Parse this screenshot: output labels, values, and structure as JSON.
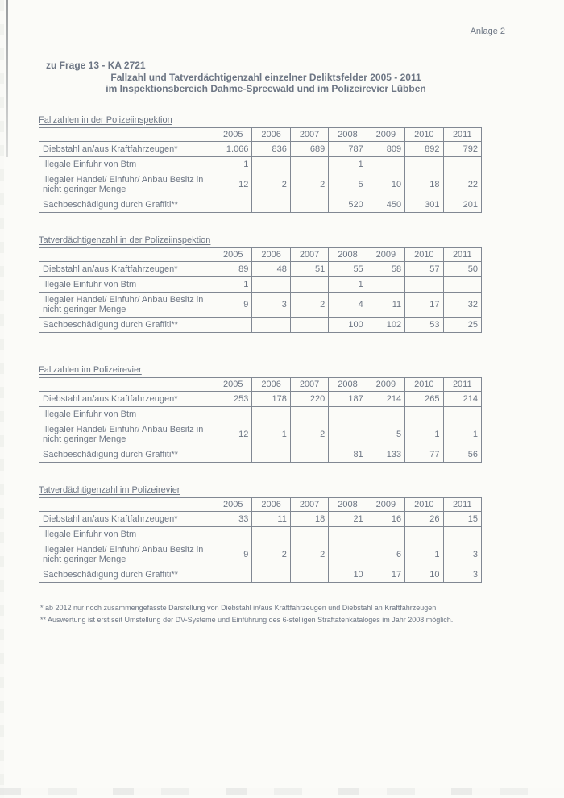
{
  "page": {
    "annotation": "Anlage 2",
    "reference": "zu Frage 13 - KA 2721",
    "title_line1": "Fallzahl und Tatverdächtigenzahl einzelner Deliktsfelder 2005 - 2011",
    "title_line2": "im Inspektionsbereich Dahme-Spreewald und im Polizeirevier Lübben"
  },
  "years": [
    "2005",
    "2006",
    "2007",
    "2008",
    "2009",
    "2010",
    "2011"
  ],
  "tables": [
    {
      "caption": "Fallzahlen in der Polizeiinspektion",
      "rows": [
        {
          "label": "Diebstahl an/aus Kraftfahrzeugen*",
          "values": [
            "1.066",
            "836",
            "689",
            "787",
            "809",
            "892",
            "792"
          ]
        },
        {
          "label": "Illegale Einfuhr von Btm",
          "values": [
            "1",
            "",
            "",
            "1",
            "",
            "",
            ""
          ]
        },
        {
          "label": "Illegaler Handel/ Einfuhr/ Anbau Besitz in nicht geringer Menge",
          "values": [
            "12",
            "2",
            "2",
            "5",
            "10",
            "18",
            "22"
          ]
        },
        {
          "label": "Sachbeschädigung durch Graffiti**",
          "values": [
            "",
            "",
            "",
            "520",
            "450",
            "301",
            "201"
          ]
        }
      ]
    },
    {
      "caption": "Tatverdächtigenzahl in der Polizeiinspektion",
      "rows": [
        {
          "label": "Diebstahl an/aus Kraftfahrzeugen*",
          "values": [
            "89",
            "48",
            "51",
            "55",
            "58",
            "57",
            "50"
          ]
        },
        {
          "label": "Illegale Einfuhr von Btm",
          "values": [
            "1",
            "",
            "",
            "1",
            "",
            "",
            ""
          ]
        },
        {
          "label": "Illegaler Handel/ Einfuhr/ Anbau Besitz in nicht geringer Menge",
          "values": [
            "9",
            "3",
            "2",
            "4",
            "11",
            "17",
            "32"
          ]
        },
        {
          "label": "Sachbeschädigung durch Graffiti**",
          "values": [
            "",
            "",
            "",
            "100",
            "102",
            "53",
            "25"
          ]
        }
      ]
    },
    {
      "caption": "Fallzahlen im Polizeirevier",
      "rows": [
        {
          "label": "Diebstahl an/aus Kraftfahrzeugen*",
          "values": [
            "253",
            "178",
            "220",
            "187",
            "214",
            "265",
            "214"
          ]
        },
        {
          "label": "Illegale Einfuhr von Btm",
          "values": [
            "",
            "",
            "",
            "",
            "",
            "",
            ""
          ]
        },
        {
          "label": "Illegaler Handel/ Einfuhr/ Anbau Besitz in nicht geringer Menge",
          "values": [
            "12",
            "1",
            "2",
            "",
            "5",
            "1",
            "1"
          ]
        },
        {
          "label": "Sachbeschädigung durch Graffiti**",
          "values": [
            "",
            "",
            "",
            "81",
            "133",
            "77",
            "56"
          ]
        }
      ]
    },
    {
      "caption": "Tatverdächtigenzahl im Polizeirevier",
      "rows": [
        {
          "label": "Diebstahl an/aus Kraftfahrzeugen*",
          "values": [
            "33",
            "11",
            "18",
            "21",
            "16",
            "26",
            "15"
          ]
        },
        {
          "label": "Illegale Einfuhr von Btm",
          "values": [
            "",
            "",
            "",
            "",
            "",
            "",
            ""
          ]
        },
        {
          "label": "Illegaler Handel/ Einfuhr/ Anbau Besitz in nicht geringer Menge",
          "values": [
            "9",
            "2",
            "2",
            "",
            "6",
            "1",
            "3"
          ]
        },
        {
          "label": "Sachbeschädigung durch Graffiti**",
          "values": [
            "",
            "",
            "",
            "10",
            "17",
            "10",
            "3"
          ]
        }
      ]
    }
  ],
  "footnotes": [
    "* ab 2012 nur noch zusammengefasste Darstellung von Diebstahl in/aus Kraftfahrzeugen und Diebstahl an Kraftfahrzeugen",
    "** Auswertung ist erst seit Umstellung der DV-Systeme und Einführung des 6-stelligen Straftatenkataloges im Jahr 2008 möglich."
  ],
  "colors": {
    "ink": "#6d7684",
    "paper": "#fbfbf8",
    "table_border": "#818893"
  }
}
